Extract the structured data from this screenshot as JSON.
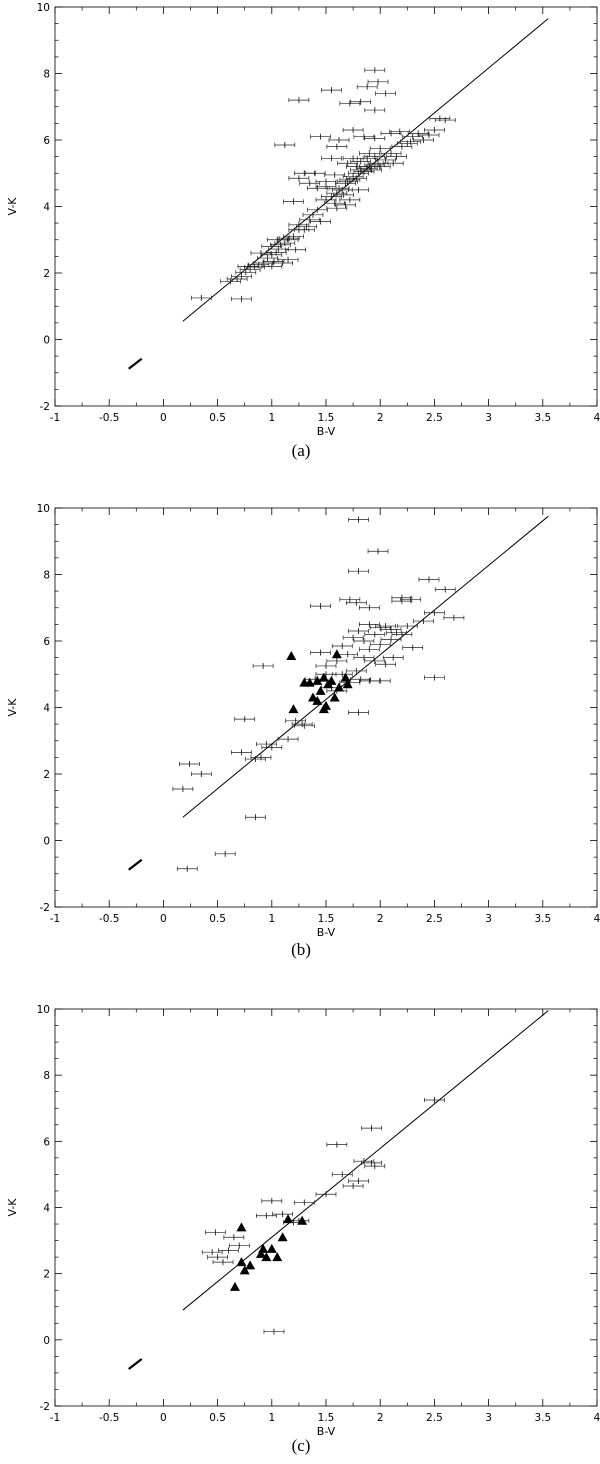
{
  "chart_data": [
    {
      "type": "scatter",
      "panel_label": "(a)",
      "xlabel": "B-V",
      "ylabel": "V-K",
      "xlim": [
        -1,
        4
      ],
      "ylim": [
        -2,
        10
      ],
      "xticks": [
        -1,
        -0.5,
        0,
        0.5,
        1,
        1.5,
        2,
        2.5,
        3,
        3.5,
        4
      ],
      "yticks": [
        -2,
        0,
        2,
        4,
        6,
        8,
        10
      ],
      "grid": false,
      "fit_line": {
        "x": [
          0.18,
          3.55
        ],
        "y": [
          0.55,
          9.65
        ]
      },
      "reddening_vector": {
        "x": [
          -0.32,
          -0.2
        ],
        "y": [
          -0.88,
          -0.58
        ]
      },
      "points": [
        {
          "x": 0.35,
          "y": 1.25
        },
        {
          "x": 0.72,
          "y": 1.22
        },
        {
          "x": 0.62,
          "y": 1.75
        },
        {
          "x": 0.68,
          "y": 1.82
        },
        {
          "x": 0.72,
          "y": 1.9
        },
        {
          "x": 0.76,
          "y": 2.02
        },
        {
          "x": 0.8,
          "y": 2.1
        },
        {
          "x": 0.84,
          "y": 2.18
        },
        {
          "x": 0.78,
          "y": 2.2
        },
        {
          "x": 0.88,
          "y": 2.25
        },
        {
          "x": 0.92,
          "y": 2.3
        },
        {
          "x": 1.02,
          "y": 2.35
        },
        {
          "x": 1.1,
          "y": 2.3
        },
        {
          "x": 0.96,
          "y": 2.45
        },
        {
          "x": 1.0,
          "y": 2.55
        },
        {
          "x": 1.04,
          "y": 2.62
        },
        {
          "x": 1.06,
          "y": 2.72
        },
        {
          "x": 1.0,
          "y": 2.8
        },
        {
          "x": 1.08,
          "y": 2.85
        },
        {
          "x": 1.12,
          "y": 2.9
        },
        {
          "x": 1.05,
          "y": 3.0
        },
        {
          "x": 1.16,
          "y": 3.05
        },
        {
          "x": 1.2,
          "y": 3.1
        },
        {
          "x": 1.3,
          "y": 3.3
        },
        {
          "x": 1.25,
          "y": 3.45
        },
        {
          "x": 1.35,
          "y": 3.6
        },
        {
          "x": 1.32,
          "y": 3.4
        },
        {
          "x": 1.38,
          "y": 3.75
        },
        {
          "x": 1.42,
          "y": 3.9
        },
        {
          "x": 1.2,
          "y": 4.15
        },
        {
          "x": 1.5,
          "y": 4.2
        },
        {
          "x": 1.55,
          "y": 4.3
        },
        {
          "x": 1.58,
          "y": 4.1
        },
        {
          "x": 1.6,
          "y": 4.4
        },
        {
          "x": 1.62,
          "y": 4.55
        },
        {
          "x": 1.65,
          "y": 4.5
        },
        {
          "x": 1.5,
          "y": 4.6
        },
        {
          "x": 1.68,
          "y": 4.7
        },
        {
          "x": 1.7,
          "y": 4.75
        },
        {
          "x": 1.72,
          "y": 4.8
        },
        {
          "x": 1.75,
          "y": 4.9
        },
        {
          "x": 1.78,
          "y": 4.85
        },
        {
          "x": 1.8,
          "y": 5.0
        },
        {
          "x": 1.82,
          "y": 5.1
        },
        {
          "x": 1.85,
          "y": 5.05
        },
        {
          "x": 1.88,
          "y": 5.15
        },
        {
          "x": 1.9,
          "y": 5.2
        },
        {
          "x": 1.92,
          "y": 5.1
        },
        {
          "x": 1.95,
          "y": 5.25
        },
        {
          "x": 1.98,
          "y": 5.3
        },
        {
          "x": 2.0,
          "y": 5.2
        },
        {
          "x": 1.7,
          "y": 5.3
        },
        {
          "x": 1.75,
          "y": 5.45
        },
        {
          "x": 1.78,
          "y": 5.2
        },
        {
          "x": 1.82,
          "y": 5.35
        },
        {
          "x": 1.88,
          "y": 5.45
        },
        {
          "x": 1.95,
          "y": 5.5
        },
        {
          "x": 2.05,
          "y": 5.4
        },
        {
          "x": 2.1,
          "y": 5.6
        },
        {
          "x": 2.15,
          "y": 5.5
        },
        {
          "x": 2.2,
          "y": 5.8
        },
        {
          "x": 2.25,
          "y": 5.9
        },
        {
          "x": 2.3,
          "y": 6.1
        },
        {
          "x": 2.35,
          "y": 6.2
        },
        {
          "x": 2.18,
          "y": 6.25
        },
        {
          "x": 2.4,
          "y": 6.0
        },
        {
          "x": 2.5,
          "y": 6.3
        },
        {
          "x": 2.55,
          "y": 6.65
        },
        {
          "x": 2.6,
          "y": 6.6
        },
        {
          "x": 1.95,
          "y": 6.05
        },
        {
          "x": 1.85,
          "y": 6.1
        },
        {
          "x": 1.75,
          "y": 6.3
        },
        {
          "x": 1.6,
          "y": 5.8
        },
        {
          "x": 1.55,
          "y": 5.45
        },
        {
          "x": 1.45,
          "y": 6.1
        },
        {
          "x": 1.12,
          "y": 5.85
        },
        {
          "x": 1.62,
          "y": 6.0
        },
        {
          "x": 1.4,
          "y": 5.0
        },
        {
          "x": 1.3,
          "y": 5.0
        },
        {
          "x": 1.25,
          "y": 4.85
        },
        {
          "x": 1.35,
          "y": 4.7
        },
        {
          "x": 1.42,
          "y": 4.55
        },
        {
          "x": 1.5,
          "y": 4.75
        },
        {
          "x": 1.58,
          "y": 4.95
        },
        {
          "x": 1.66,
          "y": 4.35
        },
        {
          "x": 1.72,
          "y": 4.2
        },
        {
          "x": 1.8,
          "y": 4.5
        },
        {
          "x": 1.68,
          "y": 4.05
        },
        {
          "x": 1.6,
          "y": 3.95
        },
        {
          "x": 1.45,
          "y": 3.55
        },
        {
          "x": 1.25,
          "y": 3.3
        },
        {
          "x": 1.15,
          "y": 3.0
        },
        {
          "x": 0.9,
          "y": 2.6
        },
        {
          "x": 1.0,
          "y": 2.2
        },
        {
          "x": 1.15,
          "y": 2.4
        },
        {
          "x": 1.22,
          "y": 2.7
        },
        {
          "x": 1.25,
          "y": 7.2
        },
        {
          "x": 1.55,
          "y": 7.5
        },
        {
          "x": 1.72,
          "y": 7.1
        },
        {
          "x": 1.82,
          "y": 7.15
        },
        {
          "x": 1.88,
          "y": 7.6
        },
        {
          "x": 1.95,
          "y": 8.1
        },
        {
          "x": 1.98,
          "y": 7.75
        },
        {
          "x": 2.05,
          "y": 7.4
        },
        {
          "x": 1.95,
          "y": 6.9
        },
        {
          "x": 2.1,
          "y": 6.2
        },
        {
          "x": 2.0,
          "y": 5.75
        },
        {
          "x": 1.9,
          "y": 5.6
        },
        {
          "x": 2.12,
          "y": 5.3
        },
        {
          "x": 2.28,
          "y": 5.95
        },
        {
          "x": 2.45,
          "y": 6.15
        }
      ],
      "triangles": []
    },
    {
      "type": "scatter",
      "panel_label": "(b)",
      "xlabel": "B-V",
      "ylabel": "V-K",
      "xlim": [
        -1,
        4
      ],
      "ylim": [
        -2,
        10
      ],
      "xticks": [
        -1,
        -0.5,
        0,
        0.5,
        1,
        1.5,
        2,
        2.5,
        3,
        3.5,
        4
      ],
      "yticks": [
        -2,
        0,
        2,
        4,
        6,
        8,
        10
      ],
      "grid": false,
      "fit_line": {
        "x": [
          0.18,
          3.55
        ],
        "y": [
          0.7,
          9.75
        ]
      },
      "reddening_vector": {
        "x": [
          -0.32,
          -0.2
        ],
        "y": [
          -0.88,
          -0.58
        ]
      },
      "points": [
        {
          "x": 0.22,
          "y": -0.85
        },
        {
          "x": 0.57,
          "y": -0.4
        },
        {
          "x": 0.85,
          "y": 0.7
        },
        {
          "x": 0.18,
          "y": 1.55
        },
        {
          "x": 0.35,
          "y": 2.0
        },
        {
          "x": 0.24,
          "y": 2.3
        },
        {
          "x": 0.85,
          "y": 2.45
        },
        {
          "x": 0.9,
          "y": 2.5
        },
        {
          "x": 0.72,
          "y": 2.65
        },
        {
          "x": 1.0,
          "y": 2.8
        },
        {
          "x": 0.95,
          "y": 2.9
        },
        {
          "x": 1.15,
          "y": 3.05
        },
        {
          "x": 1.3,
          "y": 3.45
        },
        {
          "x": 1.28,
          "y": 3.5
        },
        {
          "x": 1.22,
          "y": 3.6
        },
        {
          "x": 0.75,
          "y": 3.65
        },
        {
          "x": 1.8,
          "y": 3.85
        },
        {
          "x": 0.92,
          "y": 5.25
        },
        {
          "x": 1.45,
          "y": 5.65
        },
        {
          "x": 1.5,
          "y": 5.25
        },
        {
          "x": 1.6,
          "y": 5.4
        },
        {
          "x": 1.7,
          "y": 5.6
        },
        {
          "x": 1.75,
          "y": 6.1
        },
        {
          "x": 1.8,
          "y": 6.3
        },
        {
          "x": 1.85,
          "y": 6.0
        },
        {
          "x": 1.9,
          "y": 6.5
        },
        {
          "x": 1.95,
          "y": 6.2
        },
        {
          "x": 2.0,
          "y": 6.4
        },
        {
          "x": 2.05,
          "y": 6.45
        },
        {
          "x": 2.1,
          "y": 6.05
        },
        {
          "x": 2.15,
          "y": 6.25
        },
        {
          "x": 2.2,
          "y": 6.2
        },
        {
          "x": 2.3,
          "y": 5.8
        },
        {
          "x": 2.0,
          "y": 5.9
        },
        {
          "x": 1.9,
          "y": 5.75
        },
        {
          "x": 1.85,
          "y": 5.5
        },
        {
          "x": 1.95,
          "y": 5.4
        },
        {
          "x": 2.05,
          "y": 5.3
        },
        {
          "x": 2.12,
          "y": 5.5
        },
        {
          "x": 1.78,
          "y": 5.1
        },
        {
          "x": 1.65,
          "y": 5.0
        },
        {
          "x": 1.72,
          "y": 4.75
        },
        {
          "x": 1.82,
          "y": 4.85
        },
        {
          "x": 1.9,
          "y": 4.8
        },
        {
          "x": 2.0,
          "y": 4.8
        },
        {
          "x": 2.5,
          "y": 4.9
        },
        {
          "x": 1.55,
          "y": 4.6
        },
        {
          "x": 1.6,
          "y": 4.5
        },
        {
          "x": 1.45,
          "y": 7.05
        },
        {
          "x": 1.72,
          "y": 7.25
        },
        {
          "x": 1.78,
          "y": 7.15
        },
        {
          "x": 1.9,
          "y": 7.0
        },
        {
          "x": 2.2,
          "y": 7.3
        },
        {
          "x": 2.28,
          "y": 7.25
        },
        {
          "x": 2.2,
          "y": 7.2
        },
        {
          "x": 2.45,
          "y": 7.85
        },
        {
          "x": 2.6,
          "y": 7.55
        },
        {
          "x": 2.68,
          "y": 6.7
        },
        {
          "x": 2.5,
          "y": 6.85
        },
        {
          "x": 2.4,
          "y": 6.6
        },
        {
          "x": 2.25,
          "y": 6.45
        },
        {
          "x": 2.1,
          "y": 6.35
        },
        {
          "x": 1.8,
          "y": 8.1
        },
        {
          "x": 1.98,
          "y": 8.7
        },
        {
          "x": 1.8,
          "y": 9.65
        },
        {
          "x": 1.65,
          "y": 5.85
        },
        {
          "x": 1.5,
          "y": 5.0
        },
        {
          "x": 1.4,
          "y": 4.85
        }
      ],
      "triangles": [
        {
          "x": 1.18,
          "y": 5.55
        },
        {
          "x": 1.6,
          "y": 5.6
        },
        {
          "x": 1.35,
          "y": 4.75
        },
        {
          "x": 1.42,
          "y": 4.8
        },
        {
          "x": 1.48,
          "y": 4.9
        },
        {
          "x": 1.55,
          "y": 4.8
        },
        {
          "x": 1.52,
          "y": 4.7
        },
        {
          "x": 1.45,
          "y": 4.5
        },
        {
          "x": 1.38,
          "y": 4.3
        },
        {
          "x": 1.42,
          "y": 4.2
        },
        {
          "x": 1.5,
          "y": 4.05
        },
        {
          "x": 1.48,
          "y": 3.95
        },
        {
          "x": 1.2,
          "y": 3.95
        },
        {
          "x": 1.58,
          "y": 4.3
        },
        {
          "x": 1.62,
          "y": 4.6
        },
        {
          "x": 1.68,
          "y": 4.9
        },
        {
          "x": 1.7,
          "y": 4.7
        },
        {
          "x": 1.3,
          "y": 4.75
        }
      ]
    },
    {
      "type": "scatter",
      "panel_label": "(c)",
      "xlabel": "B-V",
      "ylabel": "V-K",
      "xlim": [
        -1,
        4
      ],
      "ylim": [
        -2,
        10
      ],
      "xticks": [
        -1,
        -0.5,
        0,
        0.5,
        1,
        1.5,
        2,
        2.5,
        3,
        3.5,
        4
      ],
      "yticks": [
        -2,
        0,
        2,
        4,
        6,
        8,
        10
      ],
      "grid": false,
      "fit_line": {
        "x": [
          0.18,
          3.55
        ],
        "y": [
          0.9,
          9.95
        ]
      },
      "reddening_vector": {
        "x": [
          -0.32,
          -0.2
        ],
        "y": [
          -0.88,
          -0.58
        ]
      },
      "points": [
        {
          "x": 0.45,
          "y": 2.65
        },
        {
          "x": 0.5,
          "y": 2.5
        },
        {
          "x": 0.55,
          "y": 2.35
        },
        {
          "x": 0.6,
          "y": 2.7
        },
        {
          "x": 0.48,
          "y": 3.25
        },
        {
          "x": 0.7,
          "y": 2.85
        },
        {
          "x": 0.65,
          "y": 3.1
        },
        {
          "x": 0.95,
          "y": 3.75
        },
        {
          "x": 1.0,
          "y": 4.2
        },
        {
          "x": 1.1,
          "y": 3.8
        },
        {
          "x": 1.2,
          "y": 3.55
        },
        {
          "x": 1.3,
          "y": 4.15
        },
        {
          "x": 1.5,
          "y": 4.4
        },
        {
          "x": 1.6,
          "y": 5.9
        },
        {
          "x": 1.65,
          "y": 5.0
        },
        {
          "x": 1.75,
          "y": 4.65
        },
        {
          "x": 1.8,
          "y": 4.8
        },
        {
          "x": 1.85,
          "y": 5.4
        },
        {
          "x": 1.92,
          "y": 5.35
        },
        {
          "x": 1.95,
          "y": 5.25
        },
        {
          "x": 1.92,
          "y": 6.4
        },
        {
          "x": 2.5,
          "y": 7.25
        },
        {
          "x": 1.02,
          "y": 0.25
        },
        {
          "x": 1.25,
          "y": 3.6
        }
      ],
      "triangles": [
        {
          "x": 0.72,
          "y": 3.4
        },
        {
          "x": 0.75,
          "y": 2.1
        },
        {
          "x": 0.8,
          "y": 2.25
        },
        {
          "x": 0.9,
          "y": 2.6
        },
        {
          "x": 0.95,
          "y": 2.5
        },
        {
          "x": 1.0,
          "y": 2.75
        },
        {
          "x": 1.05,
          "y": 2.5
        },
        {
          "x": 0.72,
          "y": 2.35
        },
        {
          "x": 0.66,
          "y": 1.6
        },
        {
          "x": 1.1,
          "y": 3.1
        },
        {
          "x": 1.15,
          "y": 3.65
        },
        {
          "x": 1.28,
          "y": 3.6
        },
        {
          "x": 0.92,
          "y": 2.75
        }
      ]
    }
  ]
}
